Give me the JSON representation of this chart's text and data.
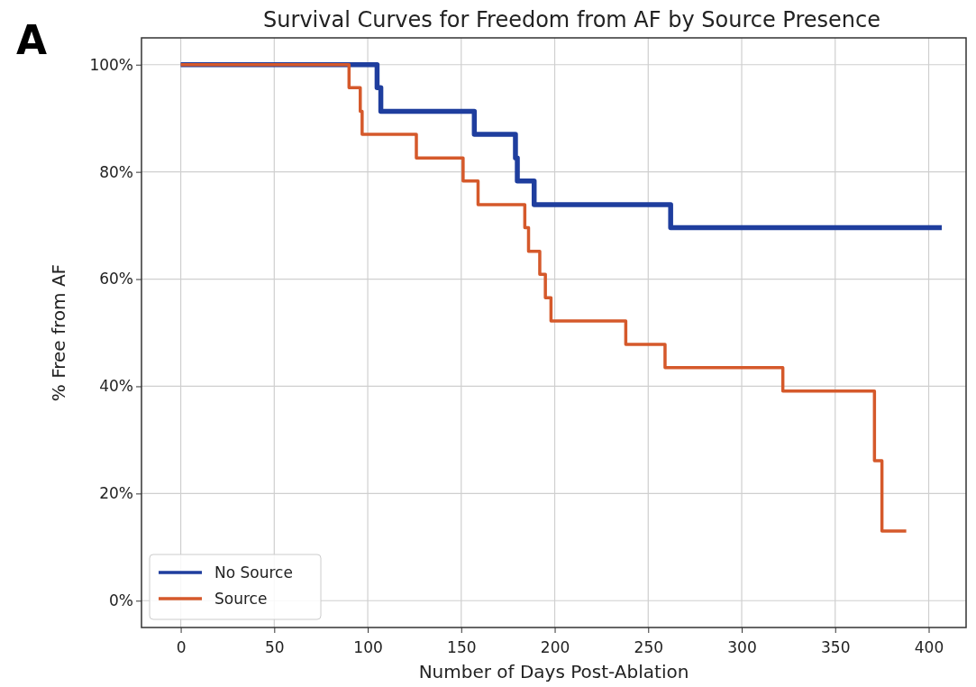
{
  "chart_data": {
    "type": "step",
    "title": "Survival Curves for Freedom from AF by Source Presence",
    "xlabel": "Number of Days Post-Ablation",
    "ylabel": "% Free from AF",
    "annotations": [
      "A"
    ],
    "xlim": [
      -21,
      420
    ],
    "ylim": [
      -5,
      105
    ],
    "xticks": [
      0,
      50,
      100,
      150,
      200,
      250,
      300,
      350,
      400
    ],
    "yticks": [
      {
        "value": 0,
        "label": "0%"
      },
      {
        "value": 20,
        "label": "20%"
      },
      {
        "value": 40,
        "label": "40%"
      },
      {
        "value": 60,
        "label": "60%"
      },
      {
        "value": 80,
        "label": "80%"
      },
      {
        "value": 100,
        "label": "100%"
      }
    ],
    "grid": true,
    "legend": "bottom left",
    "line_style": "solid",
    "series": [
      {
        "name": "No Source",
        "color": "#1f3e9e",
        "x": [
          0,
          105,
          107,
          157,
          179,
          180,
          189,
          262,
          407
        ],
        "values": [
          100,
          95.7,
          91.3,
          87.0,
          82.6,
          78.3,
          73.9,
          69.6,
          69.6
        ]
      },
      {
        "name": "Source",
        "color": "#d5592b",
        "x": [
          0,
          90,
          96,
          97,
          126,
          151,
          159,
          184,
          186,
          192,
          195,
          198,
          238,
          259,
          322,
          371,
          375,
          388
        ],
        "values": [
          100,
          95.7,
          91.3,
          87.0,
          82.6,
          78.3,
          73.9,
          69.6,
          65.2,
          60.9,
          56.5,
          52.2,
          47.8,
          43.5,
          39.1,
          26.1,
          13.0,
          13.0
        ]
      }
    ]
  }
}
